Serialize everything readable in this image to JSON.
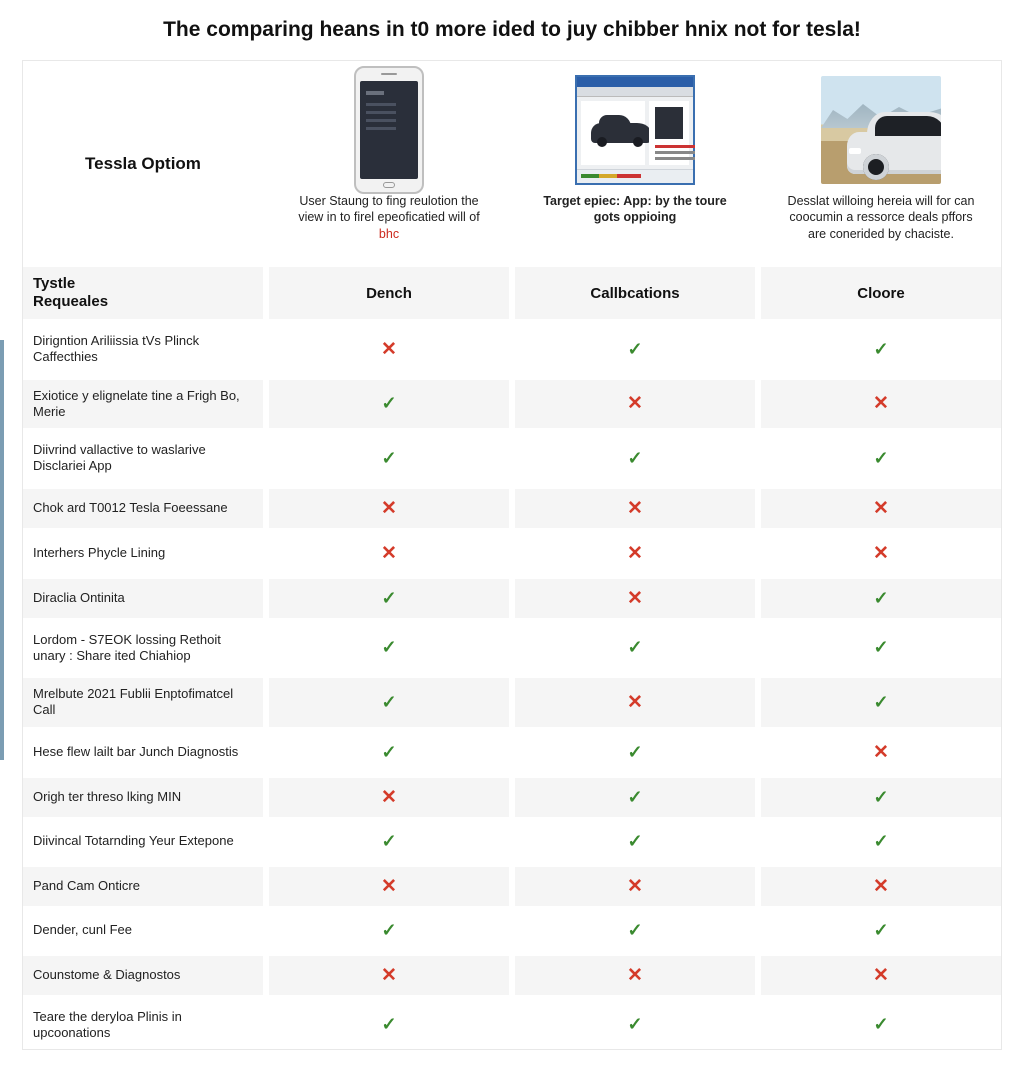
{
  "title": "The comparing heans in t0 more ided to juy chibber hnix not for tesla!",
  "corner_label": "Tessla Optiom",
  "columns": [
    {
      "caption_html": "User Staung to fing reulotion the view in to firel epeoficatied will of <span class='red'>bhc</span>",
      "header": "Dench"
    },
    {
      "caption_html": "<b>Target epiec: App: by the toure gots oppioing</b>",
      "header": "Callbcations"
    },
    {
      "caption_html": "Desslat willoing hereia will for can coocumin a ressorce deals pffors are conerided by chaciste.",
      "header": "Cloore"
    }
  ],
  "subheader_left": "Tystle\nRequeales",
  "rows": [
    {
      "label": "Dirigntion Ariliissia tVs Plinck Caffecthies",
      "vals": [
        "x",
        "c",
        "c"
      ]
    },
    {
      "label": "Exiotice y elignelate tine a Frigh Bo, Merie",
      "vals": [
        "c",
        "x",
        "x"
      ]
    },
    {
      "label": "Diivrind vallactive to waslarive Disclariei App",
      "vals": [
        "c",
        "c",
        "c"
      ]
    },
    {
      "label": "Chok ard T0012 Tesla Foeessane",
      "vals": [
        "x",
        "x",
        "x"
      ]
    },
    {
      "label": "Interhers Phycle Lining",
      "vals": [
        "x",
        "x",
        "x"
      ]
    },
    {
      "label": "Diraclia Ontinita",
      "vals": [
        "c",
        "x",
        "c"
      ]
    },
    {
      "label": "Lordom - S7EOK lossing Rethoit unary : Share ited Chiahiop",
      "vals": [
        "c",
        "c",
        "c"
      ]
    },
    {
      "label": "Mrelbute 2021 Fublii Enptofimatcel Call",
      "vals": [
        "c",
        "x",
        "c"
      ]
    },
    {
      "label": "Hese flew lailt bar Junch Diagnostis",
      "vals": [
        "c",
        "c",
        "x"
      ]
    },
    {
      "label": "Origh ter threso lking MIN",
      "vals": [
        "x",
        "c",
        "c"
      ]
    },
    {
      "label": "Diivincal Totarnding Yeur Extepone",
      "vals": [
        "c",
        "c",
        "c"
      ]
    },
    {
      "label": "Pand Cam Onticre",
      "vals": [
        "x",
        "x",
        "x"
      ]
    },
    {
      "label": "Dender, cunl Fee",
      "vals": [
        "c",
        "c",
        "c"
      ]
    },
    {
      "label": "Counstome & Diagnostos",
      "vals": [
        "x",
        "x",
        "x"
      ]
    },
    {
      "label": "Teare the deryloa Plinis in upcoonations",
      "vals": [
        "c",
        "c",
        "c"
      ]
    }
  ],
  "colors": {
    "check": "#3a8a2f",
    "cross": "#d43b2a",
    "row_alt": "#f5f5f5",
    "border": "#e8e8e8",
    "accent_left": "#7b9db3"
  },
  "glyphs": {
    "check": "✓",
    "cross": "✕"
  }
}
